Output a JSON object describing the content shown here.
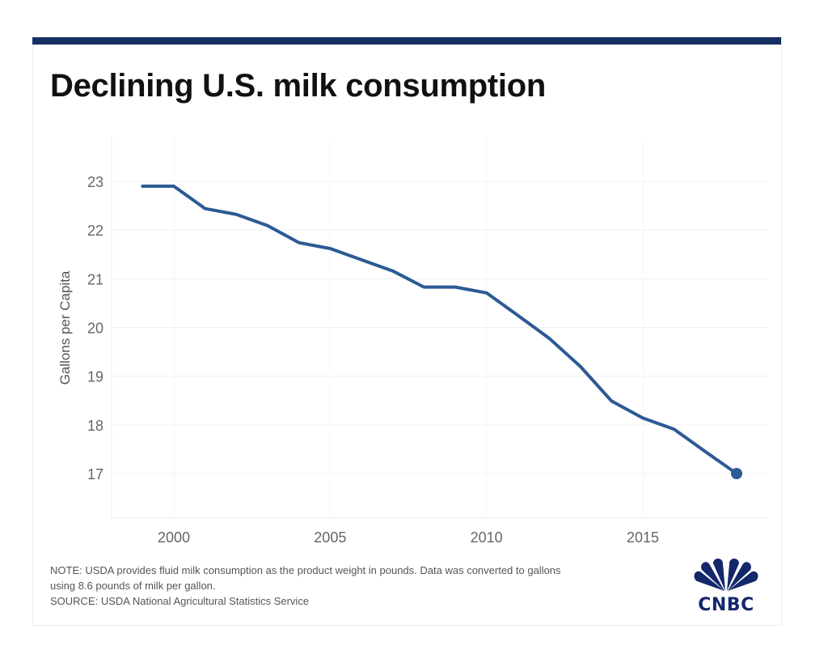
{
  "header": {
    "title": "Declining U.S. milk consumption"
  },
  "footer": {
    "note_line1": "NOTE: USDA provides fluid milk consumption as the product weight in pounds. Data was converted to gallons",
    "note_line2": "using 8.6 pounds of milk per gallon.",
    "source": "SOURCE: USDA National Agricultural Statistics Service",
    "logo_text": "CNBC"
  },
  "colors": {
    "line": "#2c5a94",
    "topbar": "#152f63",
    "logo": "#13286b"
  },
  "chart_data": {
    "type": "line",
    "title": "Declining U.S. milk consumption",
    "xlabel": "",
    "ylabel": "Gallons per Capita",
    "x": [
      1999,
      2000,
      2001,
      2002,
      2003,
      2004,
      2005,
      2006,
      2007,
      2008,
      2009,
      2010,
      2011,
      2012,
      2013,
      2014,
      2015,
      2016,
      2017,
      2018
    ],
    "series": [
      {
        "name": "Gallons per Capita",
        "values": [
          22.9,
          22.9,
          22.44,
          22.32,
          22.09,
          21.74,
          21.62,
          21.39,
          21.16,
          20.83,
          20.83,
          20.71,
          20.25,
          19.78,
          19.2,
          18.49,
          18.14,
          17.91,
          17.45,
          17.0
        ]
      }
    ],
    "xticks": [
      "2000",
      "2005",
      "2010",
      "2015"
    ],
    "xtick_values": [
      2000,
      2005,
      2010,
      2015
    ],
    "yticks": [
      "17",
      "18",
      "19",
      "20",
      "21",
      "22",
      "23"
    ],
    "ytick_values": [
      17,
      18,
      19,
      20,
      21,
      22,
      23
    ],
    "xlim": [
      1998,
      2019
    ],
    "ylim": [
      16.1,
      23.9
    ],
    "grid": true,
    "legend": "none",
    "end_marker": true
  }
}
